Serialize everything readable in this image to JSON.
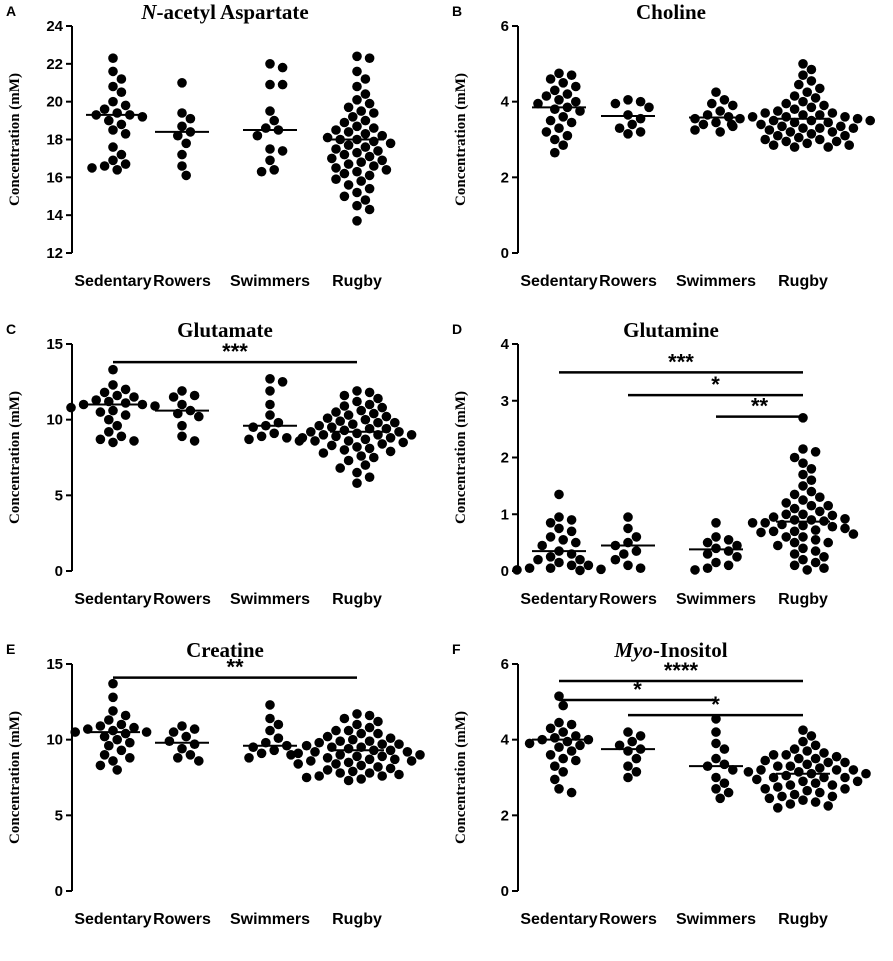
{
  "chart_data": [
    {
      "panel": "A",
      "type": "scatter",
      "title_prefix": "N",
      "title_rest": "-acetyl Aspartate",
      "ylabel": "Concentration (mM)",
      "ylim": [
        12,
        24
      ],
      "yticks": [
        12,
        14,
        16,
        18,
        20,
        22,
        24
      ],
      "categories": [
        "Sedentary",
        "Rowers",
        "Swimmers",
        "Rugby"
      ],
      "medians": [
        19.3,
        18.4,
        18.5,
        18.0
      ],
      "series": [
        {
          "name": "Sedentary",
          "values": [
            22.3,
            21.6,
            21.2,
            20.8,
            20.5,
            20.0,
            19.8,
            19.6,
            19.4,
            19.3,
            19.3,
            19.2,
            19.0,
            18.8,
            18.5,
            18.3,
            17.6,
            17.2,
            16.9,
            16.7,
            16.6,
            16.5,
            16.4
          ]
        },
        {
          "name": "Rowers",
          "values": [
            21.0,
            19.4,
            19.1,
            18.7,
            18.4,
            18.2,
            17.8,
            17.2,
            16.6,
            16.1
          ]
        },
        {
          "name": "Swimmers",
          "values": [
            22.0,
            21.8,
            20.9,
            20.9,
            19.5,
            19.0,
            18.6,
            18.5,
            18.2,
            17.5,
            17.4,
            16.9,
            16.4,
            16.3
          ]
        },
        {
          "name": "Rugby",
          "values": [
            22.4,
            22.3,
            21.6,
            21.2,
            20.8,
            20.4,
            20.1,
            19.9,
            19.7,
            19.5,
            19.4,
            19.2,
            19.0,
            18.9,
            18.7,
            18.6,
            18.5,
            18.4,
            18.3,
            18.2,
            18.1,
            18.0,
            18.0,
            17.9,
            17.8,
            17.7,
            17.6,
            17.5,
            17.4,
            17.3,
            17.2,
            17.1,
            17.0,
            16.9,
            16.8,
            16.7,
            16.6,
            16.5,
            16.4,
            16.3,
            16.2,
            16.1,
            15.9,
            15.8,
            15.6,
            15.4,
            15.2,
            15.0,
            14.8,
            14.5,
            14.3,
            13.7
          ]
        }
      ],
      "significance": []
    },
    {
      "panel": "B",
      "type": "scatter",
      "title": "Choline",
      "ylabel": "Concentration (mM)",
      "ylim": [
        0,
        6
      ],
      "yticks": [
        0,
        2,
        4,
        6
      ],
      "categories": [
        "Sedentary",
        "Rowers",
        "Swimmers",
        "Rugby"
      ],
      "medians": [
        3.85,
        3.62,
        3.58,
        3.55
      ],
      "series": [
        {
          "name": "Sedentary",
          "values": [
            4.75,
            4.7,
            4.6,
            4.5,
            4.4,
            4.3,
            4.2,
            4.15,
            4.05,
            4.0,
            3.95,
            3.85,
            3.8,
            3.75,
            3.6,
            3.5,
            3.45,
            3.3,
            3.2,
            3.1,
            3.0,
            2.85,
            2.65
          ]
        },
        {
          "name": "Rowers",
          "values": [
            4.05,
            4.0,
            3.95,
            3.85,
            3.65,
            3.55,
            3.4,
            3.3,
            3.2,
            3.15
          ]
        },
        {
          "name": "Swimmers",
          "values": [
            4.25,
            4.05,
            3.95,
            3.9,
            3.75,
            3.65,
            3.6,
            3.55,
            3.45,
            3.4,
            3.35,
            3.25,
            3.2
          ]
        },
        {
          "name": "Rugby",
          "values": [
            5.0,
            4.85,
            4.7,
            4.55,
            4.45,
            4.35,
            4.25,
            4.15,
            4.1,
            4.0,
            3.95,
            3.9,
            3.85,
            3.8,
            3.75,
            3.7,
            3.7,
            3.65,
            3.6,
            3.6,
            3.55,
            3.55,
            3.5,
            3.5,
            3.45,
            3.45,
            3.4,
            3.4,
            3.35,
            3.35,
            3.3,
            3.3,
            3.25,
            3.2,
            3.2,
            3.15,
            3.1,
            3.1,
            3.05,
            3.0,
            3.0,
            2.95,
            2.95,
            2.9,
            2.85,
            2.85,
            2.8,
            2.8,
            3.65,
            3.5,
            3.3,
            3.6
          ]
        }
      ],
      "significance": []
    },
    {
      "panel": "C",
      "type": "scatter",
      "title": "Glutamate",
      "ylabel": "Concentration (mM)",
      "ylim": [
        0,
        15
      ],
      "yticks": [
        0,
        5,
        10,
        15
      ],
      "categories": [
        "Sedentary",
        "Rowers",
        "Swimmers",
        "Rugby"
      ],
      "medians": [
        11.0,
        10.6,
        9.6,
        9.2
      ],
      "series": [
        {
          "name": "Sedentary",
          "values": [
            13.3,
            12.3,
            12.0,
            11.8,
            11.6,
            11.5,
            11.3,
            11.2,
            11.1,
            11.0,
            11.0,
            10.9,
            10.8,
            10.6,
            10.5,
            10.3,
            10.0,
            9.6,
            9.2,
            8.9,
            8.7,
            8.6,
            8.5
          ]
        },
        {
          "name": "Rowers",
          "values": [
            11.9,
            11.6,
            11.5,
            11.0,
            10.6,
            10.4,
            10.2,
            9.6,
            8.9,
            8.6
          ]
        },
        {
          "name": "Swimmers",
          "values": [
            12.7,
            12.5,
            11.9,
            11.0,
            10.3,
            9.8,
            9.6,
            9.5,
            9.1,
            8.9,
            8.8,
            8.7,
            8.6
          ]
        },
        {
          "name": "Rugby",
          "values": [
            11.9,
            11.8,
            11.6,
            11.4,
            11.2,
            11.0,
            10.9,
            10.8,
            10.6,
            10.5,
            10.4,
            10.3,
            10.1,
            10.0,
            9.9,
            9.8,
            9.7,
            9.6,
            9.5,
            9.4,
            9.3,
            9.2,
            9.2,
            9.1,
            9.0,
            9.0,
            8.9,
            8.8,
            8.7,
            8.6,
            8.5,
            8.4,
            8.3,
            8.2,
            8.1,
            8.0,
            7.9,
            7.8,
            7.6,
            7.5,
            7.3,
            7.0,
            6.8,
            6.5,
            6.2,
            5.8,
            9.4,
            9.0,
            8.6,
            10.2,
            9.8,
            8.8
          ]
        }
      ],
      "significance": [
        {
          "from": 0,
          "to": 3,
          "label": "***",
          "y": 13.8
        }
      ]
    },
    {
      "panel": "D",
      "type": "scatter",
      "title": "Glutamine",
      "ylabel": "Concentration (mM)",
      "ylim": [
        0,
        4
      ],
      "yticks": [
        0,
        1,
        2,
        3,
        4
      ],
      "categories": [
        "Sedentary",
        "Rowers",
        "Swimmers",
        "Rugby"
      ],
      "medians": [
        0.35,
        0.45,
        0.38,
        0.87
      ],
      "series": [
        {
          "name": "Sedentary",
          "values": [
            1.35,
            0.95,
            0.9,
            0.85,
            0.75,
            0.7,
            0.6,
            0.55,
            0.5,
            0.45,
            0.35,
            0.3,
            0.25,
            0.2,
            0.2,
            0.15,
            0.1,
            0.1,
            0.05,
            0.05,
            0.03,
            0.02,
            0.01
          ]
        },
        {
          "name": "Rowers",
          "values": [
            0.95,
            0.75,
            0.6,
            0.5,
            0.45,
            0.35,
            0.3,
            0.2,
            0.1,
            0.05
          ]
        },
        {
          "name": "Swimmers",
          "values": [
            0.85,
            0.6,
            0.55,
            0.5,
            0.45,
            0.4,
            0.35,
            0.3,
            0.25,
            0.15,
            0.1,
            0.05,
            0.02
          ]
        },
        {
          "name": "Rugby",
          "values": [
            2.7,
            2.15,
            2.1,
            2.0,
            1.9,
            1.8,
            1.7,
            1.6,
            1.5,
            1.4,
            1.35,
            1.3,
            1.25,
            1.2,
            1.15,
            1.1,
            1.05,
            1.0,
            0.98,
            0.95,
            0.92,
            0.9,
            0.88,
            0.85,
            0.82,
            0.8,
            0.78,
            0.75,
            0.72,
            0.7,
            0.68,
            0.65,
            0.6,
            0.55,
            0.5,
            0.45,
            0.4,
            0.35,
            0.3,
            0.25,
            0.2,
            0.15,
            0.1,
            0.05,
            0.02,
            0.9,
            0.85,
            1.0,
            0.7,
            0.6,
            1.15,
            0.5
          ]
        }
      ],
      "significance": [
        {
          "from": 0,
          "to": 3,
          "label": "***",
          "y": 3.5
        },
        {
          "from": 1,
          "to": 3,
          "label": "*",
          "y": 3.1
        },
        {
          "from": 2,
          "to": 3,
          "label": "**",
          "y": 2.72
        }
      ]
    },
    {
      "panel": "E",
      "type": "scatter",
      "title": "Creatine",
      "ylabel": "Concentration (mM)",
      "ylim": [
        0,
        15
      ],
      "yticks": [
        0,
        5,
        10,
        15
      ],
      "categories": [
        "Sedentary",
        "Rowers",
        "Swimmers",
        "Rugby"
      ],
      "medians": [
        10.5,
        9.8,
        9.6,
        9.3
      ],
      "series": [
        {
          "name": "Sedentary",
          "values": [
            13.7,
            12.8,
            11.9,
            11.6,
            11.3,
            11.0,
            10.9,
            10.8,
            10.7,
            10.6,
            10.5,
            10.5,
            10.4,
            10.2,
            10.0,
            9.8,
            9.6,
            9.3,
            9.0,
            8.8,
            8.6,
            8.3,
            8.0
          ]
        },
        {
          "name": "Rowers",
          "values": [
            10.9,
            10.7,
            10.5,
            10.2,
            9.9,
            9.7,
            9.4,
            9.0,
            8.8,
            8.6
          ]
        },
        {
          "name": "Swimmers",
          "values": [
            12.3,
            11.4,
            11.0,
            10.6,
            10.1,
            9.8,
            9.6,
            9.5,
            9.3,
            9.1,
            9.0,
            8.8
          ]
        },
        {
          "name": "Rugby",
          "values": [
            11.7,
            11.6,
            11.4,
            11.2,
            11.0,
            10.8,
            10.6,
            10.4,
            10.2,
            10.0,
            9.9,
            9.8,
            9.7,
            9.6,
            9.5,
            9.4,
            9.3,
            9.2,
            9.1,
            9.0,
            8.9,
            8.8,
            8.7,
            8.6,
            8.5,
            8.4,
            8.3,
            8.2,
            8.1,
            8.0,
            7.9,
            7.8,
            7.7,
            7.6,
            7.5,
            7.4,
            7.3,
            9.3,
            9.0,
            8.6,
            10.1,
            9.7,
            8.9,
            9.5,
            10.4,
            8.4,
            7.8,
            9.2,
            8.7,
            10.6,
            9.9,
            7.6
          ]
        }
      ],
      "significance": [
        {
          "from": 0,
          "to": 3,
          "label": "**",
          "y": 14.1
        }
      ]
    },
    {
      "panel": "F",
      "type": "scatter",
      "title_prefix": "Myo",
      "title_rest": "-Inositol",
      "ylabel": "Concentration (mM)",
      "ylim": [
        0,
        6
      ],
      "yticks": [
        0,
        2,
        4,
        6
      ],
      "categories": [
        "Sedentary",
        "Rowers",
        "Swimmers",
        "Rugby"
      ],
      "medians": [
        4.0,
        3.75,
        3.3,
        3.1
      ],
      "series": [
        {
          "name": "Sedentary",
          "values": [
            5.15,
            4.9,
            4.45,
            4.4,
            4.3,
            4.2,
            4.1,
            4.05,
            4.0,
            4.0,
            3.95,
            3.9,
            3.85,
            3.8,
            3.7,
            3.6,
            3.5,
            3.45,
            3.3,
            3.15,
            2.95,
            2.7,
            2.6
          ]
        },
        {
          "name": "Rowers",
          "values": [
            4.2,
            4.1,
            3.95,
            3.85,
            3.75,
            3.7,
            3.5,
            3.3,
            3.15,
            3.0
          ]
        },
        {
          "name": "Swimmers",
          "values": [
            4.55,
            4.2,
            3.9,
            3.75,
            3.5,
            3.35,
            3.3,
            3.2,
            3.0,
            2.85,
            2.7,
            2.6,
            2.45
          ]
        },
        {
          "name": "Rugby",
          "values": [
            4.25,
            4.1,
            3.95,
            3.85,
            3.75,
            3.7,
            3.65,
            3.6,
            3.55,
            3.5,
            3.45,
            3.4,
            3.35,
            3.3,
            3.25,
            3.2,
            3.2,
            3.15,
            3.1,
            3.05,
            3.0,
            3.0,
            2.95,
            2.9,
            2.85,
            2.8,
            2.75,
            2.7,
            2.65,
            2.6,
            2.55,
            2.5,
            2.45,
            2.4,
            2.35,
            2.3,
            2.25,
            2.2,
            3.1,
            3.3,
            2.9,
            3.6,
            3.4,
            3.0,
            2.7,
            3.2,
            2.5,
            3.5,
            2.8,
            3.15
          ]
        }
      ],
      "significance": [
        {
          "from": 0,
          "to": 3,
          "label": "****",
          "y": 5.55
        },
        {
          "from": 0,
          "to": 2,
          "label": "*",
          "y": 5.05
        },
        {
          "from": 1,
          "to": 3,
          "label": "*",
          "y": 4.65
        }
      ]
    }
  ]
}
